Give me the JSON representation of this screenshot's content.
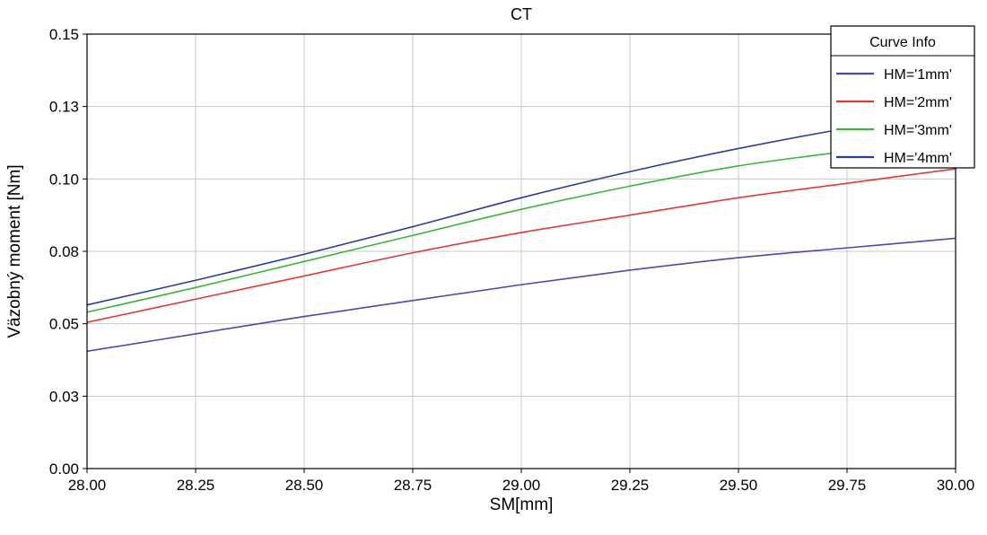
{
  "chart_data": {
    "type": "line",
    "title": "CT",
    "xlabel": "SM[mm]",
    "ylabel": "Väzobný moment [Nm]",
    "xlim": [
      28.0,
      30.0
    ],
    "ylim": [
      0.0,
      0.15
    ],
    "x_ticks": [
      "28.00",
      "28.25",
      "28.50",
      "28.75",
      "29.00",
      "29.25",
      "29.50",
      "29.75",
      "30.00"
    ],
    "y_ticks": [
      "0.00",
      "0.03",
      "0.05",
      "0.08",
      "0.10",
      "0.13",
      "0.15"
    ],
    "y_tick_values": [
      0.0,
      0.025,
      0.05,
      0.075,
      0.1,
      0.125,
      0.15
    ],
    "grid": true,
    "legend": {
      "title": "Curve Info",
      "position": "top-right"
    },
    "x": [
      28.0,
      28.25,
      28.5,
      28.75,
      29.0,
      29.25,
      29.5,
      29.75,
      30.0
    ],
    "series": [
      {
        "name": "HM='1mm'",
        "color": "#4a4ab0",
        "values": [
          0.0405,
          0.0465,
          0.0525,
          0.058,
          0.0635,
          0.0685,
          0.0728,
          0.0762,
          0.0795
        ]
      },
      {
        "name": "HM='2mm'",
        "color": "#e03a3a",
        "values": [
          0.0505,
          0.0585,
          0.0665,
          0.0745,
          0.0815,
          0.0875,
          0.0935,
          0.0985,
          0.1035
        ]
      },
      {
        "name": "HM='3mm'",
        "color": "#3cb43c",
        "values": [
          0.054,
          0.0625,
          0.0715,
          0.0805,
          0.0895,
          0.0975,
          0.1045,
          0.1095,
          0.1135
        ]
      },
      {
        "name": "HM='4mm'",
        "color": "#2a3d9a",
        "values": [
          0.0565,
          0.065,
          0.074,
          0.0835,
          0.0935,
          0.1025,
          0.1105,
          0.1175,
          0.1235
        ]
      }
    ]
  }
}
